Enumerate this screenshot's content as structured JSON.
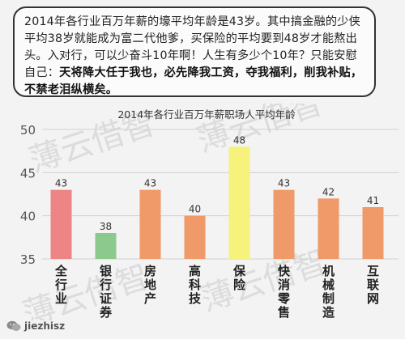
{
  "callout": {
    "text_plain": "2014年各行业百万年薪的壕平均年龄是43岁。其中搞金融的少侠平均38岁就能成为富二代他爹，买保险的平均要到48岁才能熬出头。入对行，可以少奋斗10年啊！人生有多少个10年？只能安慰自己：",
    "text_bold": "天将降大任于我也，必先降我工资，夺我福利，削我补贴，不禁老泪纵横矣。"
  },
  "watermark": "薄云借智",
  "footer": {
    "handle": "jiezhisz"
  },
  "colors": {
    "pink": "#ec8583",
    "green": "#8cc98c",
    "orange": "#ef9a68",
    "yellow": "#f6f27c",
    "watermark": "#dcdcdc"
  },
  "chart_data": {
    "type": "bar",
    "title": "2014年各行业百万年薪职场人平均年龄",
    "categories": [
      "全行业",
      "银行证券",
      "房地产",
      "高科技",
      "保险",
      "快消零售",
      "机械制造",
      "互联网"
    ],
    "values": [
      43,
      38,
      43,
      40,
      48,
      43,
      42,
      41
    ],
    "data_labels": [
      "43",
      "38",
      "43",
      "40",
      "48",
      "43",
      "42",
      "41"
    ],
    "bar_colors": [
      "#ec8583",
      "#8cc98c",
      "#ef9a68",
      "#ef9a68",
      "#f6f27c",
      "#ef9a68",
      "#ef9a68",
      "#ef9a68"
    ],
    "yticks": [
      35,
      40,
      45,
      50
    ],
    "ytick_labels": [
      "35",
      "40",
      "45",
      "50"
    ],
    "ylim": [
      35,
      50
    ],
    "grid": true
  }
}
